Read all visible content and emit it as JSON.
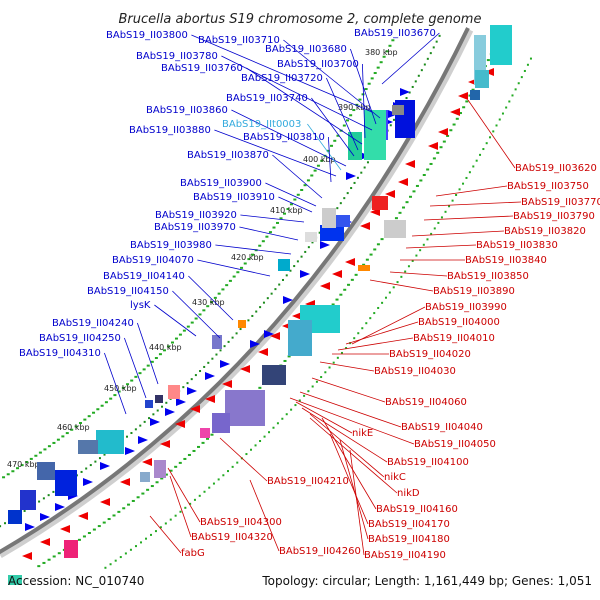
{
  "title": "Brucella abortus S19 chromosome 2, complete genome",
  "footer": {
    "accession": "Accession: NC_010740",
    "summary": "Topology: circular; Length: 1,161,449 bp; Genes: 1,051"
  },
  "colors": {
    "forward_label": "#0000cc",
    "reverse_label": "#cc0000",
    "trna_label": "#33aadd",
    "forward_feature": "#0000ee",
    "reverse_feature": "#ee0000",
    "backbone": "#777777",
    "tick": "#22aa22"
  },
  "scale_ticks": [
    "380 kbp",
    "390 kbp",
    "400 kbp",
    "410 kbp",
    "420 kbp",
    "430 kbp",
    "440 kbp",
    "450 kbp",
    "460 kbp",
    "470 kbp"
  ],
  "left_labels": [
    "BAbS19_II03670",
    "BAbS19_II03800",
    "BAbS19_II03710",
    "BAbS19_II03680",
    "BAbS19_II03780",
    "BAbS19_II03700",
    "BAbS19_II03760",
    "BAbS19_II03720",
    "BAbS19_II03740",
    "BAbS19_II03860",
    "BAbS19_IIt0003",
    "BAbS19_II03880",
    "BAbS19_II03810",
    "BAbS19_II03870",
    "BAbS19_II03900",
    "BAbS19_II03910",
    "BAbS19_II03920",
    "BAbS19_II03970",
    "BAbS19_II03980",
    "BAbS19_II04070",
    "BAbS19_II04140",
    "BAbS19_II04150",
    "lysK",
    "BAbS19_II04240",
    "BAbS19_II04250",
    "BAbS19_II04310"
  ],
  "right_labels": [
    "BAbS19_II03620",
    "BAbS19_II03750",
    "BAbS19_II03770",
    "BAbS19_II03790",
    "BAbS19_II03820",
    "BAbS19_II03830",
    "BAbS19_II03840",
    "BAbS19_II03850",
    "BAbS19_II03890",
    "BAbS19_II03990",
    "BAbS19_II04000",
    "BAbS19_II04010",
    "BAbS19_II04020",
    "BAbS19_II04030",
    "BAbS19_II04060",
    "BAbS19_II04040",
    "BAbS19_II04050",
    "nikE",
    "BAbS19_II04100",
    "nikC",
    "nikD",
    "BAbS19_II04210",
    "BAbS19_II04160",
    "BAbS19_II04170",
    "BAbS19_II04300",
    "BAbS19_II04180",
    "BAbS19_II04320",
    "BAbS19_II04260",
    "BAbS19_II04190",
    "fabG"
  ]
}
